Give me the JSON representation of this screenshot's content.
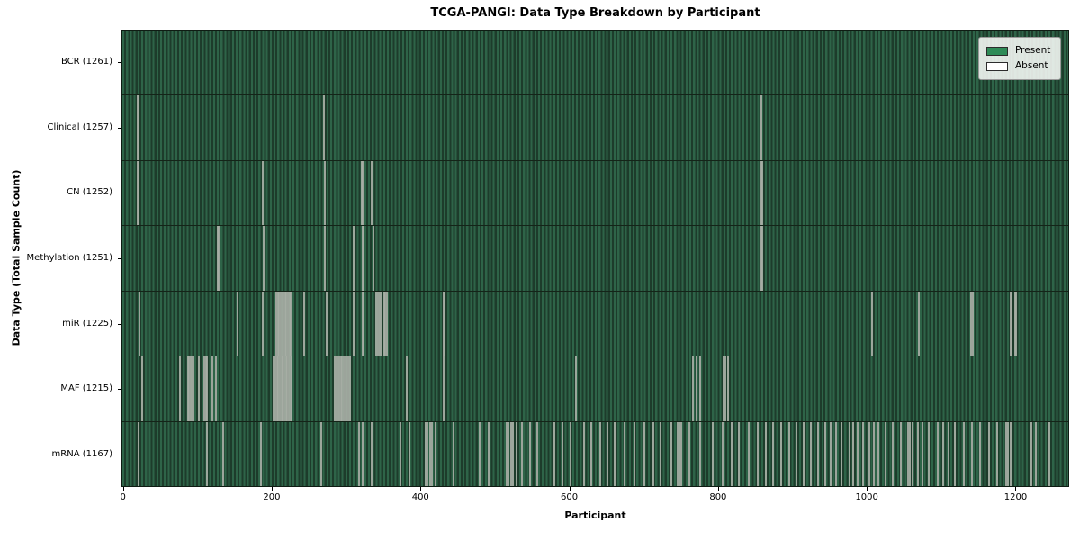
{
  "chart_data": {
    "type": "heatmap",
    "title": "TCGA-PANGI: Data Type Breakdown by Participant",
    "xlabel": "Participant",
    "ylabel": "Data Type (Total Sample Count)",
    "total_participants": 1261,
    "xlim": [
      -2,
      1272
    ],
    "xticks": [
      0,
      200,
      400,
      600,
      800,
      1000,
      1200
    ],
    "grid": false,
    "legend_position": "upper right",
    "legend": [
      {
        "label": "Present",
        "color": "#2e8b57"
      },
      {
        "label": "Absent",
        "color": "#ffffff"
      }
    ],
    "colors": {
      "present_fill": "#2e8b57",
      "present_stripe_light": "#2e6448",
      "present_stripe_dark": "#1d3c2b",
      "absent_mark": "#a7aea5"
    },
    "rows": [
      {
        "name": "BCR",
        "count": 1261,
        "label": "BCR (1261)",
        "absent_count": 0,
        "absent": []
      },
      {
        "name": "Clinical",
        "count": 1257,
        "label": "Clinical (1257)",
        "absent_count": 4,
        "absent": [
          17,
          18,
          268,
          858
        ]
      },
      {
        "name": "CN",
        "count": 1252,
        "label": "CN (1252)",
        "absent_count": 9,
        "absent": [
          17,
          18,
          186,
          269,
          319,
          321,
          332,
          857,
          859
        ]
      },
      {
        "name": "Methylation",
        "count": 1251,
        "label": "Methylation (1251)",
        "absent_count": 10,
        "absent": [
          125,
          127,
          187,
          270,
          308,
          320,
          322,
          335,
          857,
          859
        ]
      },
      {
        "name": "miR",
        "count": 1225,
        "label": "miR (1225)",
        "absent_count": 36,
        "absent": [
          20,
          152,
          186,
          204,
          206,
          208,
          210,
          212,
          214,
          216,
          218,
          220,
          222,
          224,
          242,
          272,
          308,
          320,
          322,
          339,
          341,
          343,
          346,
          349,
          351,
          353,
          429,
          431,
          1007,
          1070,
          1140,
          1142,
          1193,
          1195,
          1199,
          1201
        ]
      },
      {
        "name": "MAF",
        "count": 1215,
        "label": "MAF (1215)",
        "absent_count": 46,
        "absent": [
          24,
          74,
          85,
          87,
          89,
          91,
          93,
          100,
          107,
          109,
          111,
          118,
          123,
          201,
          203,
          205,
          207,
          209,
          211,
          213,
          215,
          217,
          219,
          221,
          223,
          225,
          283,
          285,
          287,
          289,
          291,
          293,
          295,
          297,
          299,
          301,
          303,
          380,
          429,
          608,
          765,
          770,
          775,
          806,
          809,
          812
        ]
      },
      {
        "name": "mRNA",
        "count": 1167,
        "label": "mRNA (1167)",
        "absent_count": 94,
        "absent": [
          18,
          111,
          132,
          183,
          265,
          316,
          321,
          333,
          371,
          383,
          405,
          408,
          411,
          414,
          419,
          443,
          478,
          490,
          514,
          517,
          520,
          523,
          528,
          535,
          546,
          556,
          579,
          590,
          600,
          619,
          628,
          640,
          650,
          660,
          673,
          686,
          700,
          712,
          722,
          736,
          745,
          747,
          750,
          761,
          775,
          792,
          805,
          817,
          827,
          840,
          852,
          863,
          873,
          884,
          895,
          905,
          914,
          924,
          934,
          944,
          951,
          958,
          965,
          976,
          981,
          987,
          995,
          1003,
          1009,
          1015,
          1025,
          1035,
          1045,
          1055,
          1058,
          1061,
          1068,
          1075,
          1083,
          1095,
          1102,
          1109,
          1118,
          1130,
          1141,
          1152,
          1164,
          1175,
          1187,
          1190,
          1193,
          1221,
          1227,
          1245
        ]
      }
    ]
  }
}
